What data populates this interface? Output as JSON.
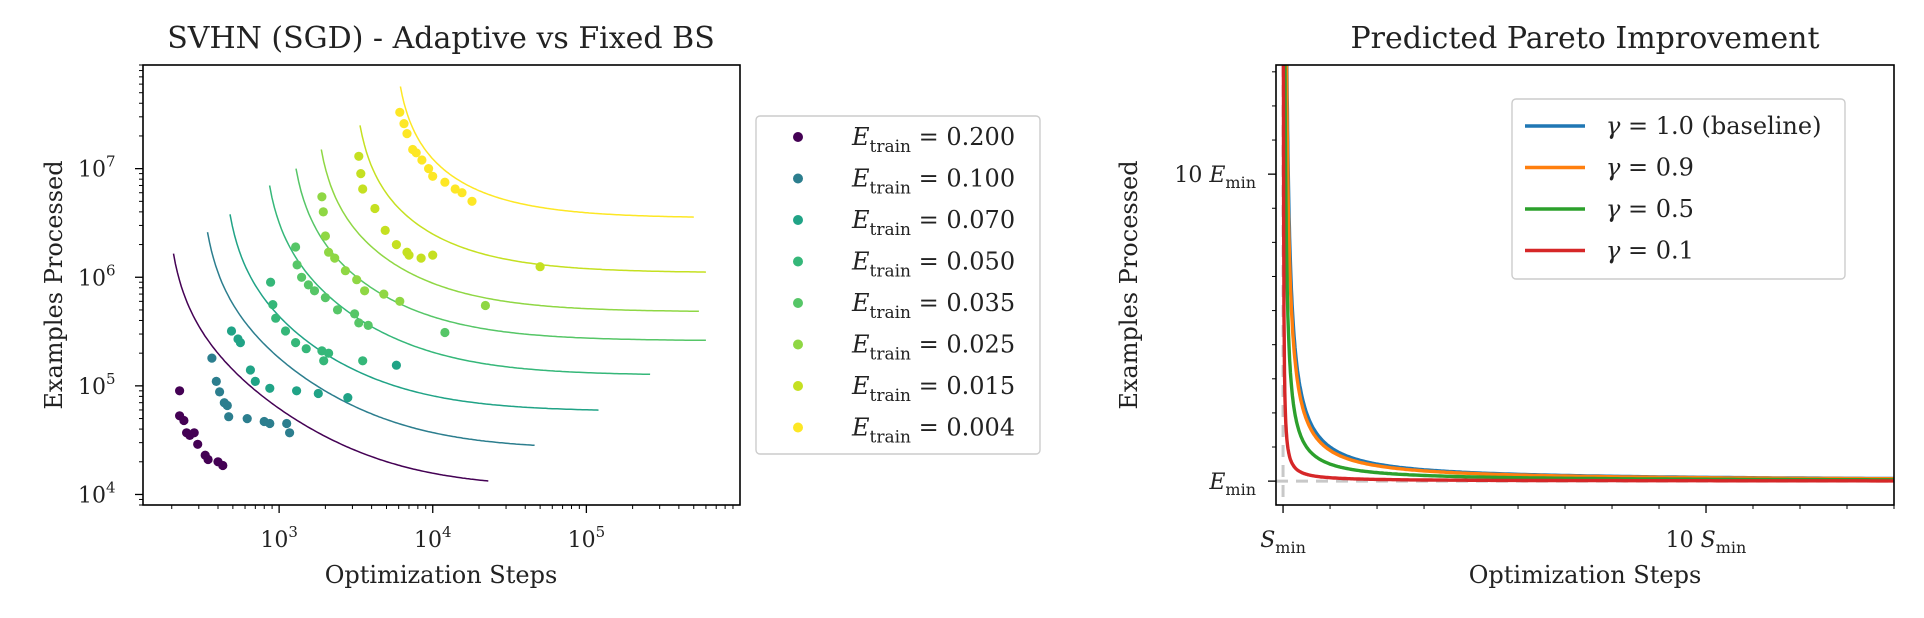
{
  "colors": {
    "text": "#222222",
    "axis": "#000000",
    "legend_border": "#cccccc",
    "reference_lines": "#c8c8c8"
  },
  "chart_data": [
    {
      "type": "scatter",
      "title": "SVHN (SGD) - Adaptive vs Fixed BS",
      "xlabel": "Optimization Steps",
      "ylabel": "Examples Processed",
      "xscale": "log",
      "yscale": "log",
      "xlim": [
        130,
        1000000
      ],
      "ylim": [
        8000,
        90000000
      ],
      "x_ticks": [
        {
          "value": 1000,
          "base": "10",
          "exp": "3"
        },
        {
          "value": 10000,
          "base": "10",
          "exp": "4"
        },
        {
          "value": 100000,
          "base": "10",
          "exp": "5"
        }
      ],
      "y_ticks": [
        {
          "value": 10000,
          "base": "10",
          "exp": "4"
        },
        {
          "value": 100000,
          "base": "10",
          "exp": "5"
        },
        {
          "value": 1000000,
          "base": "10",
          "exp": "6"
        },
        {
          "value": 10000000,
          "base": "10",
          "exp": "7"
        }
      ],
      "grid": false,
      "legend_position": "outside-right",
      "series": [
        {
          "name": "E_train = 0.200",
          "label_var": "E",
          "label_sub": "train",
          "label_value": "= 0.200",
          "color": "#440154",
          "curve": {
            "s_min": 180,
            "e_min": 11500,
            "x_end": 23000,
            "y_top": 1650000
          },
          "points": [
            [
              225,
              90000
            ],
            [
              225,
              53000
            ],
            [
              240,
              48000
            ],
            [
              250,
              37000
            ],
            [
              262,
              35000
            ],
            [
              280,
              37000
            ],
            [
              295,
              29000
            ],
            [
              330,
              23000
            ],
            [
              345,
              21000
            ],
            [
              400,
              20000
            ],
            [
              430,
              18500
            ]
          ]
        },
        {
          "name": "E_train = 0.100",
          "label_var": "E",
          "label_sub": "train",
          "label_value": "= 0.100",
          "color": "#2c7e8e",
          "curve": {
            "s_min": 300,
            "e_min": 26000,
            "x_end": 46000,
            "y_top": 2600000
          },
          "points": [
            [
              365,
              180000
            ],
            [
              390,
              110000
            ],
            [
              410,
              88000
            ],
            [
              440,
              70000
            ],
            [
              460,
              66000
            ],
            [
              470,
              52000
            ],
            [
              620,
              50000
            ],
            [
              800,
              47000
            ],
            [
              870,
              45000
            ],
            [
              1120,
              45000
            ],
            [
              1170,
              37000
            ]
          ]
        },
        {
          "name": "E_train = 0.070",
          "label_var": "E",
          "label_sub": "train",
          "label_value": "= 0.070",
          "color": "#20a386",
          "curve": {
            "s_min": 420,
            "e_min": 58000,
            "x_end": 120000,
            "y_top": 3800000
          },
          "points": [
            [
              490,
              320000
            ],
            [
              540,
              270000
            ],
            [
              560,
              250000
            ],
            [
              650,
              140000
            ],
            [
              700,
              110000
            ],
            [
              870,
              95000
            ],
            [
              1300,
              90000
            ],
            [
              1800,
              85000
            ],
            [
              2800,
              78000
            ],
            [
              5800,
              155000
            ]
          ]
        },
        {
          "name": "E_train = 0.050",
          "label_var": "E",
          "label_sub": "train",
          "label_value": "= 0.050",
          "color": "#35b779",
          "curve": {
            "s_min": 760,
            "e_min": 125000,
            "x_end": 260000,
            "y_top": 7000000
          },
          "points": [
            [
              880,
              900000
            ],
            [
              910,
              560000
            ],
            [
              950,
              420000
            ],
            [
              1100,
              320000
            ],
            [
              1280,
              250000
            ],
            [
              1500,
              220000
            ],
            [
              1900,
              210000
            ],
            [
              1950,
              170000
            ],
            [
              2100,
              200000
            ],
            [
              3500,
              170000
            ]
          ]
        },
        {
          "name": "E_train = 0.035",
          "label_var": "E",
          "label_sub": "train",
          "label_value": "= 0.035",
          "color": "#56c667",
          "curve": {
            "s_min": 1130,
            "e_min": 260000,
            "x_end": 600000,
            "y_top": 10000000
          },
          "points": [
            [
              1280,
              1900000
            ],
            [
              1310,
              1300000
            ],
            [
              1400,
              1000000
            ],
            [
              1550,
              850000
            ],
            [
              1700,
              750000
            ],
            [
              2000,
              650000
            ],
            [
              2400,
              500000
            ],
            [
              3100,
              460000
            ],
            [
              3300,
              380000
            ],
            [
              3800,
              360000
            ],
            [
              12000,
              310000
            ]
          ]
        },
        {
          "name": "E_train = 0.025",
          "label_var": "E",
          "label_sub": "train",
          "label_value": "= 0.025",
          "color": "#8fd744",
          "curve": {
            "s_min": 1650,
            "e_min": 480000,
            "x_end": 540000,
            "y_top": 15000000
          },
          "points": [
            [
              1900,
              5500000
            ],
            [
              1940,
              4000000
            ],
            [
              2000,
              2400000
            ],
            [
              2100,
              1700000
            ],
            [
              2300,
              1500000
            ],
            [
              2700,
              1150000
            ],
            [
              3200,
              950000
            ],
            [
              3600,
              750000
            ],
            [
              4800,
              700000
            ],
            [
              6100,
              600000
            ],
            [
              22000,
              550000
            ]
          ]
        },
        {
          "name": "E_train = 0.015",
          "label_var": "E",
          "label_sub": "train",
          "label_value": "= 0.015",
          "color": "#c5e021",
          "curve": {
            "s_min": 2950,
            "e_min": 1100000,
            "x_end": 600000,
            "y_top": 25000000
          },
          "points": [
            [
              3300,
              13000000
            ],
            [
              3400,
              9000000
            ],
            [
              3500,
              6500000
            ],
            [
              4200,
              4300000
            ],
            [
              4900,
              2700000
            ],
            [
              5800,
              2000000
            ],
            [
              6800,
              1700000
            ],
            [
              7000,
              1600000
            ],
            [
              8400,
              1500000
            ],
            [
              10000,
              1600000
            ],
            [
              50000,
              1250000
            ]
          ]
        },
        {
          "name": "E_train = 0.004",
          "label_var": "E",
          "label_sub": "train",
          "label_value": "= 0.004",
          "color": "#fde725",
          "curve": {
            "s_min": 5400,
            "e_min": 3500000,
            "x_end": 500000,
            "y_top": 57000000
          },
          "points": [
            [
              6100,
              33000000
            ],
            [
              6500,
              26000000
            ],
            [
              6800,
              21000000
            ],
            [
              7400,
              15000000
            ],
            [
              7800,
              14000000
            ],
            [
              8500,
              12000000
            ],
            [
              9400,
              10000000
            ],
            [
              10000,
              8500000
            ],
            [
              12000,
              7500000
            ],
            [
              14000,
              6500000
            ],
            [
              15500,
              6000000
            ],
            [
              18000,
              5000000
            ]
          ]
        }
      ]
    },
    {
      "type": "line",
      "title": "Predicted Pareto Improvement",
      "xlabel": "Optimization Steps",
      "ylabel": "Examples Processed",
      "x_unit": "S_min",
      "y_unit": "E_min",
      "xlim": [
        0.85,
        14
      ],
      "ylim": [
        0.3,
        13.2
      ],
      "x_ticks": [
        {
          "value": 1,
          "label_coef": "",
          "label_var": "S",
          "label_sub": "min"
        },
        {
          "value": 10,
          "label_coef": "10 ",
          "label_var": "S",
          "label_sub": "min"
        }
      ],
      "y_ticks": [
        {
          "value": 1,
          "label_coef": "",
          "label_var": "E",
          "label_sub": "min"
        },
        {
          "value": 10,
          "label_coef": "10 ",
          "label_var": "E",
          "label_sub": "min"
        }
      ],
      "reference_lines": {
        "x": 1,
        "y": 1,
        "style": "dashed"
      },
      "grid": false,
      "legend_position": "upper-right",
      "series": [
        {
          "name": "γ = 1.0 (baseline)",
          "label_var": "γ",
          "label_value": "= 1.0 (baseline)",
          "gamma": 1.0,
          "color": "#1f77b4"
        },
        {
          "name": "γ = 0.9",
          "label_var": "γ",
          "label_value": "= 0.9",
          "gamma": 0.9,
          "color": "#ff7f0e"
        },
        {
          "name": "γ = 0.5",
          "label_var": "γ",
          "label_value": "= 0.5",
          "gamma": 0.5,
          "color": "#2ca02c"
        },
        {
          "name": "γ = 0.1",
          "label_var": "γ",
          "label_value": "= 0.1",
          "gamma": 0.1,
          "color": "#d62728"
        }
      ],
      "relation": "(S/S_min - 1)(E/E_min - 1) = γ"
    }
  ]
}
